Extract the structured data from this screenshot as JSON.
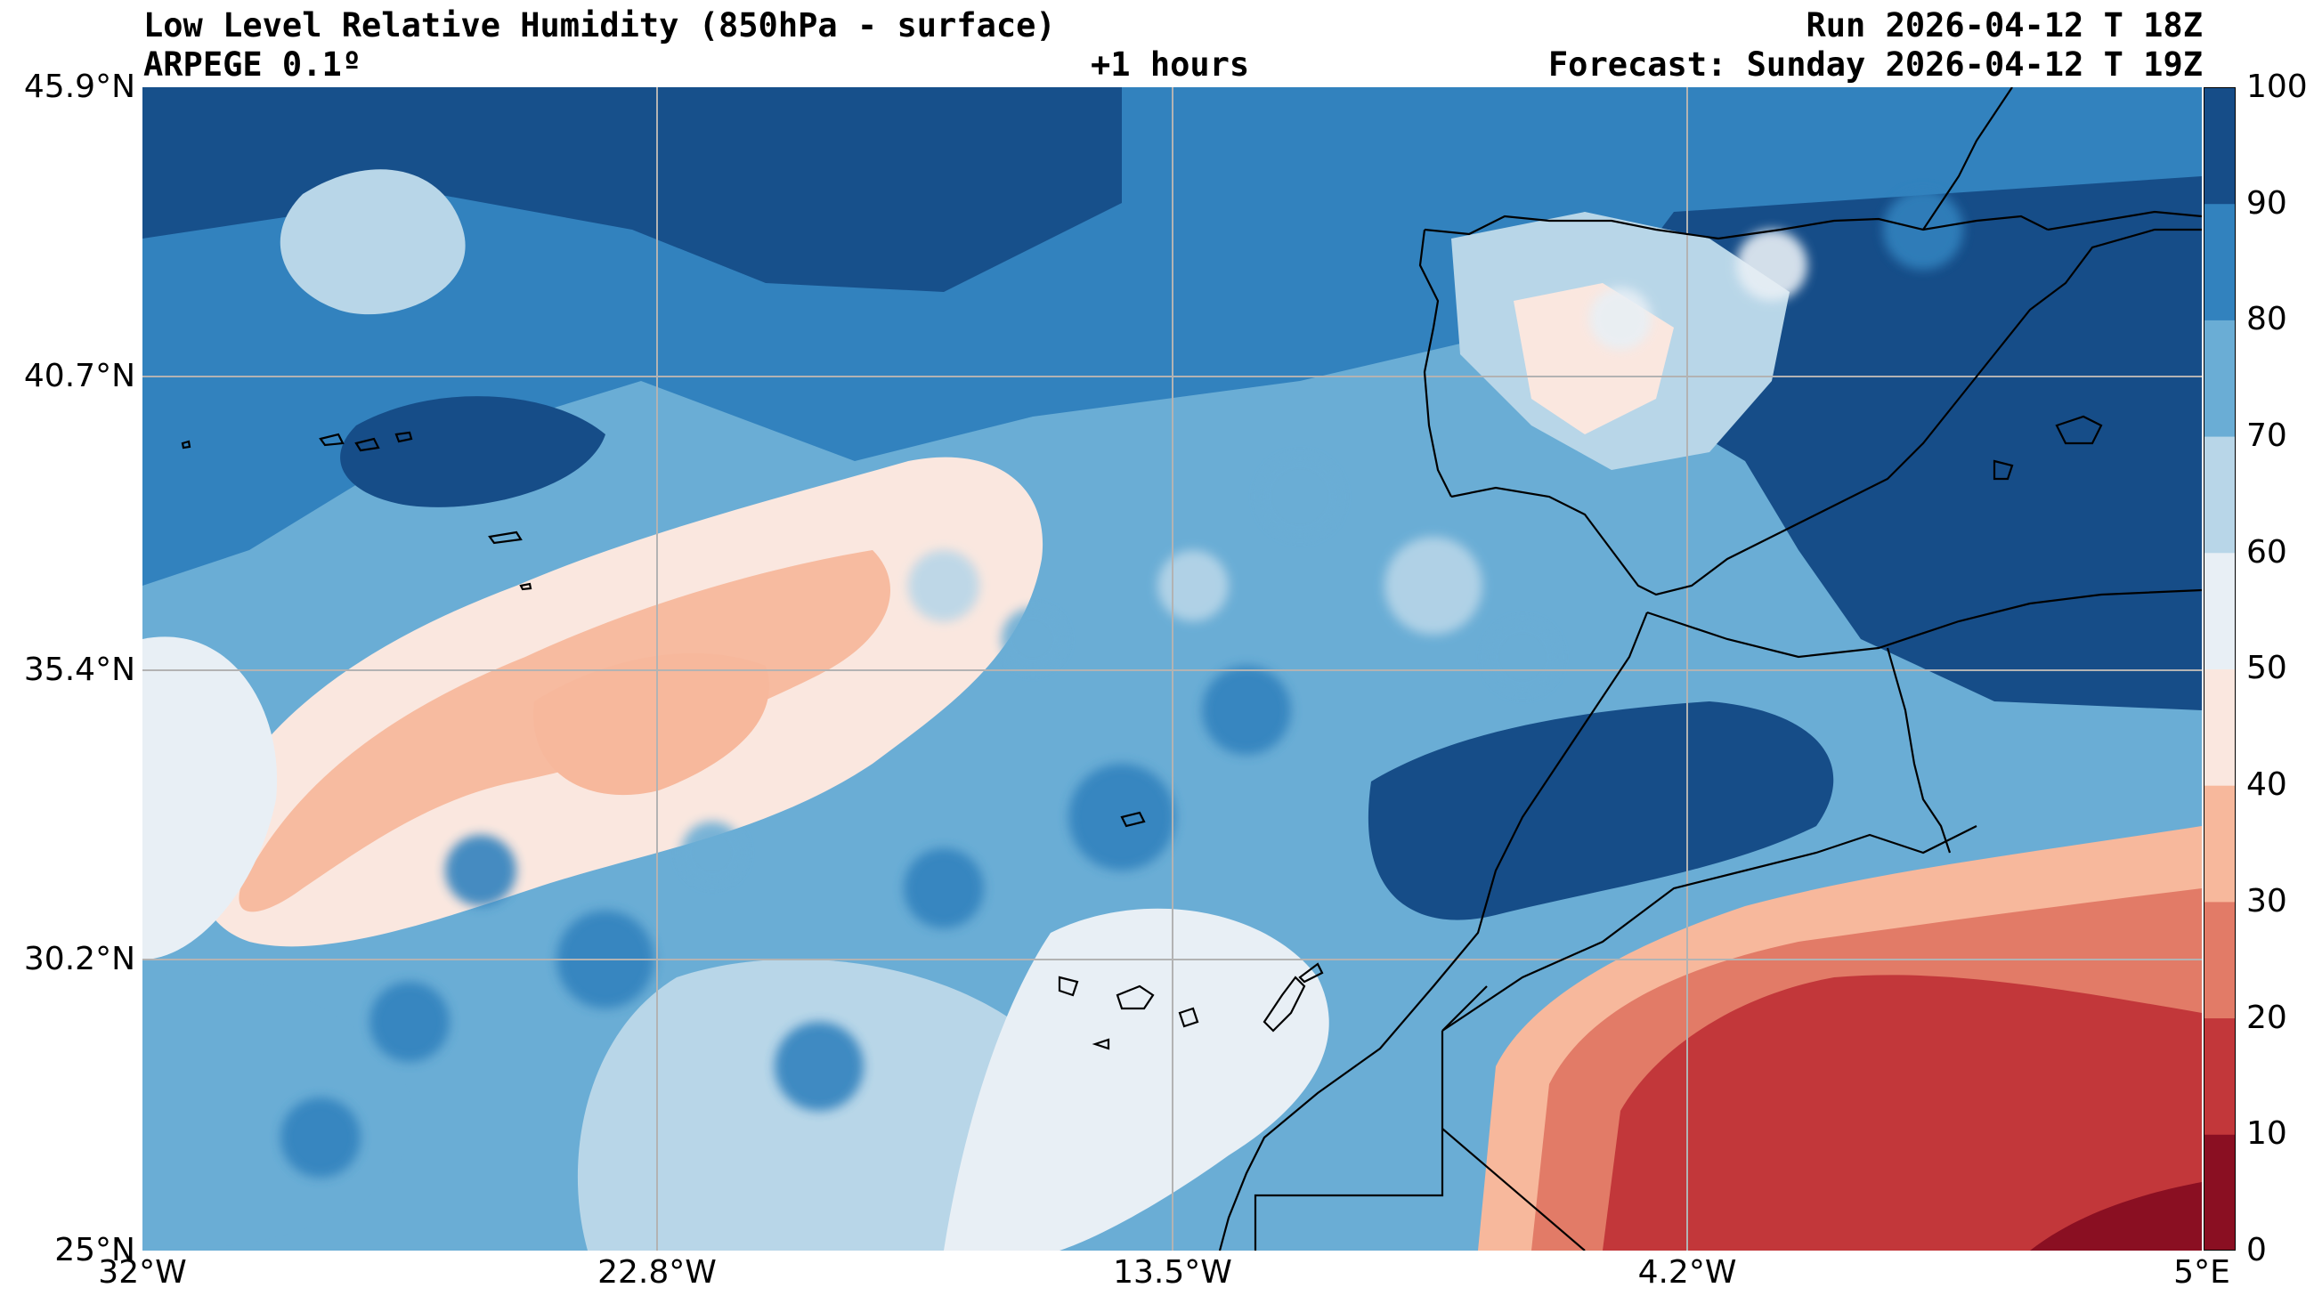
{
  "header": {
    "title": "Low Level Relative Humidity (850hPa - surface)",
    "model": "ARPEGE 0.1º",
    "lead": "+1 hours",
    "run": "Run 2026-04-12 T 18Z",
    "forecast": "Forecast: Sunday 2026-04-12 T 19Z"
  },
  "axes": {
    "lat_labels": [
      "45.9°N",
      "40.7°N",
      "35.4°N",
      "30.2°N",
      "25°N"
    ],
    "lon_labels": [
      "32°W",
      "22.8°W",
      "13.5°W",
      "4.2°W",
      "5°E"
    ]
  },
  "map": {
    "extent": {
      "lon": [
        -32,
        5
      ],
      "lat": [
        25,
        45.9
      ]
    },
    "gridlines": true,
    "variable": "Relative humidity (%)"
  },
  "colorbar": {
    "levels": [
      "0",
      "10",
      "20",
      "30",
      "40",
      "50",
      "60",
      "70",
      "80",
      "90",
      "100"
    ],
    "colors": [
      "#8a0f22",
      "#c2373a",
      "#e27b67",
      "#f7b89c",
      "#fae7df",
      "#e8eff5",
      "#b8d6e8",
      "#6aadd5",
      "#3282be",
      "#164d88"
    ]
  }
}
